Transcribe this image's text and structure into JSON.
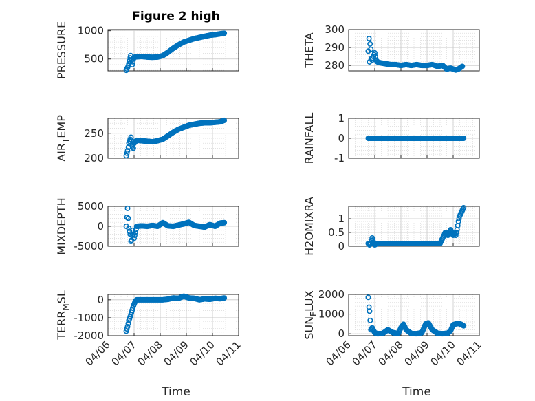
{
  "figure": {
    "title": "Figure 2 high",
    "xlabel": "Time",
    "x_ticks": [
      "04/06",
      "04/07",
      "04/08",
      "04/09",
      "04/10",
      "04/11"
    ],
    "marker_color": "#0072BD"
  },
  "chart_data": [
    {
      "type": "scatter",
      "ylabel": "PRESSURE",
      "ylabel_sub": "",
      "ylabel_parts": [
        "PRESSURE",
        "",
        ""
      ],
      "ylim": [
        290,
        1020
      ],
      "yticks": [
        500,
        1000
      ],
      "ytick_labels": [
        "500",
        "1000"
      ],
      "x": [
        6.7,
        6.75,
        6.78,
        6.8,
        6.83,
        6.85,
        6.87,
        6.9,
        6.93,
        6.97,
        7.0,
        7.1,
        7.3,
        7.5,
        7.7,
        7.9,
        8.1,
        8.3,
        8.5,
        8.7,
        8.9,
        9.1,
        9.3,
        9.5,
        9.7,
        9.9,
        10.1,
        10.3,
        10.45
      ],
      "y": [
        300,
        350,
        380,
        420,
        470,
        520,
        560,
        480,
        400,
        500,
        530,
        540,
        545,
        535,
        530,
        535,
        560,
        620,
        690,
        750,
        800,
        830,
        860,
        880,
        900,
        920,
        930,
        945,
        955
      ]
    },
    {
      "type": "scatter",
      "ylabel": "THETA",
      "ylabel_sub": "",
      "ylabel_parts": [
        "THETA",
        "",
        ""
      ],
      "ylim": [
        277,
        300
      ],
      "yticks": [
        280,
        290,
        300
      ],
      "ytick_labels": [
        "280",
        "290",
        "300"
      ],
      "x": [
        6.75,
        6.78,
        6.8,
        6.82,
        6.85,
        6.88,
        6.9,
        6.95,
        7.0,
        7.05,
        7.1,
        7.2,
        7.4,
        7.6,
        7.8,
        8.0,
        8.2,
        8.4,
        8.6,
        8.8,
        9.0,
        9.2,
        9.4,
        9.6,
        9.75,
        9.9,
        10.1,
        10.2,
        10.3,
        10.35
      ],
      "y": [
        288,
        295,
        282,
        292,
        289,
        284,
        283,
        285,
        287,
        283,
        282,
        281.5,
        281,
        280.5,
        280.5,
        280,
        280.5,
        280,
        280.5,
        280,
        280,
        280.5,
        279.5,
        280,
        278,
        278.5,
        277.5,
        278,
        279,
        279.5
      ]
    },
    {
      "type": "scatter",
      "ylabel": "AIR",
      "ylabel_sub": "T",
      "ylabel_parts": [
        "AIR",
        "T",
        "EMP"
      ],
      "ylim": [
        200,
        280
      ],
      "yticks": [
        200,
        250
      ],
      "ytick_labels": [
        "200",
        "250"
      ],
      "x": [
        6.7,
        6.75,
        6.78,
        6.8,
        6.85,
        6.88,
        6.9,
        6.93,
        6.97,
        7.0,
        7.1,
        7.3,
        7.5,
        7.7,
        7.9,
        8.1,
        8.3,
        8.5,
        8.7,
        8.9,
        9.1,
        9.3,
        9.5,
        9.7,
        9.9,
        10.1,
        10.3,
        10.45
      ],
      "y": [
        205,
        215,
        222,
        230,
        238,
        242,
        236,
        225,
        220,
        230,
        236,
        235,
        234,
        233,
        235,
        238,
        245,
        252,
        258,
        262,
        266,
        268,
        270,
        271,
        271,
        272,
        273,
        276
      ]
    },
    {
      "type": "scatter",
      "ylabel": "RAINFALL",
      "ylabel_sub": "",
      "ylabel_parts": [
        "RAINFALL",
        "",
        ""
      ],
      "ylim": [
        -1,
        1
      ],
      "yticks": [
        -1,
        0,
        1
      ],
      "ytick_labels": [
        "-1",
        "0",
        "1"
      ],
      "x": [
        6.75,
        6.9,
        7.0,
        7.2,
        7.4,
        7.6,
        7.8,
        8.0,
        8.2,
        8.4,
        8.6,
        8.8,
        9.0,
        9.2,
        9.4,
        9.6,
        9.8,
        10.0,
        10.2,
        10.4
      ],
      "y": [
        0,
        0,
        0,
        0,
        0,
        0,
        0,
        0,
        0,
        0,
        0,
        0,
        0,
        0,
        0,
        0,
        0,
        0,
        0,
        0
      ]
    },
    {
      "type": "scatter",
      "ylabel": "MIXDEPTH",
      "ylabel_sub": "",
      "ylabel_parts": [
        "MIXDEPTH",
        "",
        ""
      ],
      "ylim": [
        -5000,
        5000
      ],
      "yticks": [
        -5000,
        0,
        5000
      ],
      "ytick_labels": [
        "-5000",
        "0",
        "5000"
      ],
      "x": [
        6.7,
        6.75,
        6.8,
        6.85,
        6.88,
        6.9,
        6.95,
        7.0,
        7.1,
        7.3,
        7.5,
        7.7,
        7.9,
        8.1,
        8.3,
        8.5,
        8.7,
        8.9,
        9.1,
        9.3,
        9.5,
        9.7,
        9.9,
        10.1,
        10.3,
        10.45
      ],
      "y": [
        0,
        4500,
        -500,
        -2000,
        -3800,
        -3500,
        -1000,
        -3000,
        0,
        100,
        0,
        200,
        0,
        900,
        100,
        0,
        300,
        600,
        1000,
        200,
        0,
        -200,
        400,
        0,
        800,
        900
      ]
    },
    {
      "type": "scatter",
      "ylabel": "H2OMIXRA",
      "ylabel_sub": "",
      "ylabel_parts": [
        "H2OMIXRA",
        "",
        ""
      ],
      "ylim": [
        0,
        1.45
      ],
      "yticks": [
        0,
        0.5,
        1
      ],
      "ytick_labels": [
        "0",
        "0.5",
        "1"
      ],
      "x": [
        6.75,
        6.8,
        6.85,
        6.9,
        6.95,
        7.0,
        7.1,
        7.3,
        7.5,
        7.7,
        7.9,
        8.1,
        8.3,
        8.5,
        8.7,
        8.9,
        9.1,
        9.3,
        9.5,
        9.7,
        9.8,
        9.9,
        10.0,
        10.05,
        10.1,
        10.15,
        10.2,
        10.25,
        10.3,
        10.35,
        10.4
      ],
      "y": [
        0.1,
        0.05,
        0.1,
        0.3,
        0.15,
        0.05,
        0.1,
        0.1,
        0.1,
        0.1,
        0.1,
        0.1,
        0.1,
        0.1,
        0.1,
        0.1,
        0.1,
        0.1,
        0.1,
        0.5,
        0.4,
        0.6,
        0.4,
        0.5,
        0.4,
        0.6,
        0.9,
        1.1,
        1.2,
        1.3,
        1.4
      ]
    },
    {
      "type": "scatter",
      "ylabel": "TERR",
      "ylabel_sub": "M",
      "ylabel_parts": [
        "TERR",
        "M",
        "SL"
      ],
      "ylim": [
        -2000,
        300
      ],
      "yticks": [
        -2000,
        -1000,
        0
      ],
      "ytick_labels": [
        "-2000",
        "-1000",
        "0"
      ],
      "x": [
        6.7,
        6.75,
        6.8,
        6.85,
        6.9,
        6.95,
        7.0,
        7.05,
        7.1,
        7.3,
        7.5,
        7.7,
        7.9,
        8.1,
        8.3,
        8.5,
        8.7,
        8.9,
        9.1,
        9.3,
        9.5,
        9.7,
        9.9,
        10.1,
        10.3,
        10.45
      ],
      "y": [
        -1750,
        -1500,
        -1150,
        -950,
        -700,
        -450,
        -250,
        -80,
        0,
        0,
        0,
        0,
        0,
        0,
        30,
        100,
        80,
        200,
        100,
        80,
        0,
        50,
        30,
        80,
        60,
        100
      ]
    },
    {
      "type": "scatter",
      "ylabel": "SUN",
      "ylabel_sub": "F",
      "ylabel_parts": [
        "SUN",
        "F",
        "LUX"
      ],
      "ylim": [
        -100,
        2000
      ],
      "yticks": [
        0,
        1000,
        2000
      ],
      "ytick_labels": [
        "0",
        "1000",
        "2000"
      ],
      "x": [
        6.75,
        6.78,
        6.8,
        6.85,
        6.9,
        7.0,
        7.1,
        7.3,
        7.5,
        7.7,
        7.9,
        8.0,
        8.1,
        8.2,
        8.4,
        8.6,
        8.8,
        8.95,
        9.05,
        9.2,
        9.4,
        9.6,
        9.8,
        9.9,
        10.0,
        10.1,
        10.2,
        10.3,
        10.4
      ],
      "y": [
        1850,
        1350,
        1150,
        200,
        300,
        50,
        0,
        10,
        200,
        50,
        10,
        300,
        480,
        200,
        10,
        0,
        50,
        500,
        550,
        200,
        20,
        0,
        30,
        150,
        450,
        500,
        520,
        480,
        400
      ]
    }
  ]
}
